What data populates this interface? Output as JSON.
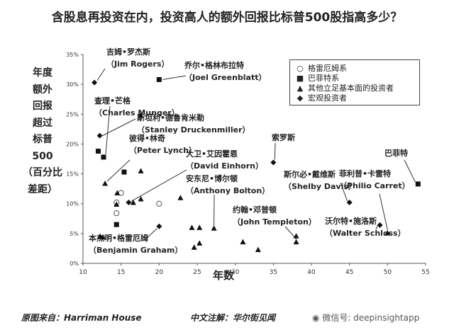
{
  "title": "含股息再投资在内，投资高人的额外回报比标普500股指高多少？",
  "y_axis_label": [
    "年度",
    "额外",
    "回报",
    "超过",
    "标普",
    "500",
    "（百分比",
    "差距）"
  ],
  "x_axis_label": "年数",
  "footer": {
    "source": "原图来自：Harriman House",
    "annotation": "中文注解：华尔街见闻",
    "watermark": "微信号: deepinsightapp"
  },
  "legend": [
    {
      "symbol": "circle",
      "label": "格雷厄姆系"
    },
    {
      "symbol": "square",
      "label": "巴菲特系"
    },
    {
      "symbol": "triangle",
      "label": "其他立足基本面的投资者"
    },
    {
      "symbol": "diamond",
      "label": "宏观投资者"
    }
  ],
  "chart_data": {
    "type": "scatter",
    "xlabel": "年数",
    "ylabel": "年度额外回报超过标普500（百分比差距）",
    "xlim": [
      10,
      55
    ],
    "ylim": [
      0,
      35
    ],
    "x_ticks": [
      10,
      15,
      20,
      25,
      30,
      35,
      40,
      45,
      50,
      55
    ],
    "y_ticks": [
      0,
      5,
      10,
      15,
      20,
      25,
      30,
      35
    ],
    "y_tick_suffix": "%",
    "series": [
      {
        "name": "格雷厄姆系",
        "symbol": "circle",
        "points": [
          [
            15,
            11.8
          ],
          [
            14.4,
            10.2
          ],
          [
            14.4,
            8.4
          ],
          [
            20,
            10
          ]
        ]
      },
      {
        "name": "巴菲特系",
        "symbol": "square",
        "points": [
          [
            20,
            30.8
          ],
          [
            12,
            18.8
          ],
          [
            12.7,
            17.8
          ],
          [
            15.4,
            15.3
          ],
          [
            14.4,
            6.5
          ],
          [
            54,
            13.3
          ]
        ]
      },
      {
        "name": "其他立足基本面的投资者",
        "symbol": "triangle",
        "points": [
          [
            17.6,
            24.8
          ],
          [
            12.9,
            13.4
          ],
          [
            14.5,
            11.8
          ],
          [
            14.4,
            9.9
          ],
          [
            17.6,
            15.5
          ],
          [
            17.6,
            10.8
          ],
          [
            16.6,
            10.2
          ],
          [
            12.2,
            4.5
          ],
          [
            12.6,
            4.4
          ],
          [
            22.8,
            11
          ],
          [
            24.3,
            6
          ],
          [
            25.3,
            6
          ],
          [
            27.2,
            5.9
          ],
          [
            24.6,
            2.7
          ],
          [
            25.3,
            3.4
          ],
          [
            31,
            3.6
          ],
          [
            33,
            2.3
          ],
          [
            38,
            4.6
          ],
          [
            38,
            3.6
          ],
          [
            50,
            5.1
          ]
        ]
      },
      {
        "name": "宏观投资者",
        "symbol": "diamond",
        "points": [
          [
            11.5,
            30.3
          ],
          [
            12.2,
            21.4
          ],
          [
            16,
            10.2
          ],
          [
            20,
            6.2
          ],
          [
            35,
            16.9
          ],
          [
            45,
            10.2
          ],
          [
            49,
            6.4
          ]
        ]
      }
    ],
    "annotations": [
      {
        "text": "吉姆•罗杰斯（Jim Rogers）",
        "x": 11.5,
        "y": 30.3
      },
      {
        "text": "乔尔•格林布拉特（Joel Greenblatt）",
        "x": 20,
        "y": 30.8
      },
      {
        "text": "查理•芒格（Charles Munger）",
        "x": 12.7,
        "y": 17.8
      },
      {
        "text": "斯坦利•德鲁肯米勒（Stanley Druckenmiller）",
        "x": 12.2,
        "y": 21.4
      },
      {
        "text": "彼得•林奇（Peter Lynch）",
        "x": 12.9,
        "y": 13.4
      },
      {
        "text": "大卫•艾因霍恩（David Einhorn）",
        "x": 16,
        "y": 10.2
      },
      {
        "text": "安东尼•博尔顿（Anthony Bolton）",
        "x": 27.2,
        "y": 5.9
      },
      {
        "text": "本杰明•格雷厄姆（Benjamin Graham）",
        "x": 20,
        "y": 6.2
      },
      {
        "text": "索罗斯",
        "x": 35,
        "y": 16.9
      },
      {
        "text": "斯尔必•戴维斯（Shelby Davis）",
        "x": 45,
        "y": 10.2
      },
      {
        "text": "菲利普•卡雷特（Philio Carret）",
        "x": 50,
        "y": 5.1
      },
      {
        "text": "巴菲特",
        "x": 54,
        "y": 13.3
      },
      {
        "text": "约翰•邓普顿（John Templeton）",
        "x": 38,
        "y": 3.6
      },
      {
        "text": "沃尔特•施洛斯（Walter Schloss）",
        "x": 49,
        "y": 6.4
      }
    ]
  }
}
